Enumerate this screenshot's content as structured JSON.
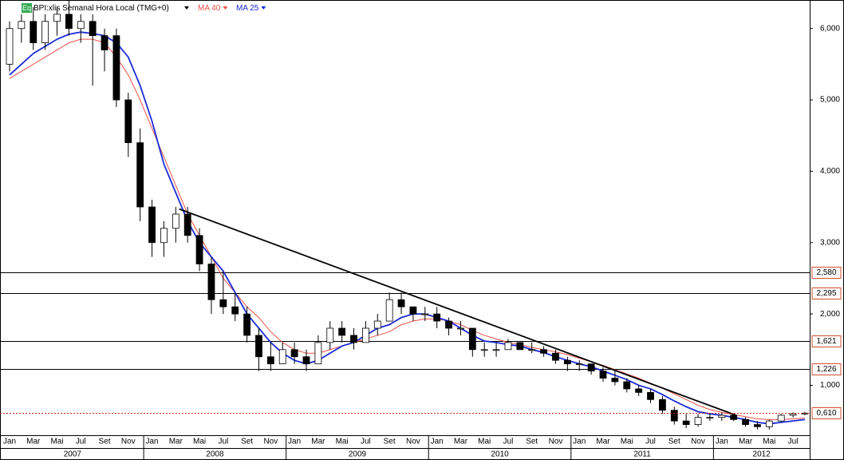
{
  "chart_data": {
    "type": "candlestick",
    "title": "BPI:xlis Semanal Hora Local (TMG+0)",
    "badge": "Eq",
    "categories": [
      "Jan",
      null,
      "Mar",
      null,
      "Mai",
      null,
      "Jul",
      null,
      "Set",
      null,
      "Nov",
      null,
      "Jan",
      null,
      "Mar",
      null,
      "Mai",
      null,
      "Jul",
      null,
      "Set",
      null,
      "Nov",
      null,
      "Jan",
      null,
      "Mar",
      null,
      "Mai",
      null,
      "Jul",
      null,
      "Set",
      null,
      "Nov",
      null,
      "Jan",
      null,
      "Mar",
      null,
      "Mai",
      null,
      "Jul",
      null,
      "Set",
      null,
      "Nov",
      null,
      "Jan",
      null,
      "Mar",
      null,
      "Mai",
      null,
      "Jul",
      null,
      "Set",
      null,
      "Nov",
      null,
      "Jan",
      null,
      "Mar",
      null,
      "Mai",
      null,
      "Jul",
      null
    ],
    "years": [
      "2007",
      "2008",
      "2009",
      "2010",
      "2011",
      "2012"
    ],
    "open": [
      5.5,
      6.0,
      6.1,
      5.8,
      6.1,
      6.2,
      6.0,
      6.1,
      5.9,
      5.9,
      5.0,
      4.4,
      3.5,
      3.0,
      3.2,
      3.4,
      3.1,
      2.7,
      2.2,
      2.1,
      2.0,
      1.7,
      1.4,
      1.3,
      1.5,
      1.4,
      1.3,
      1.6,
      1.8,
      1.7,
      1.6,
      1.8,
      1.9,
      2.2,
      2.1,
      2.0,
      2.0,
      1.9,
      1.8,
      1.8,
      1.5,
      1.5,
      1.5,
      1.6,
      1.5,
      1.5,
      1.45,
      1.35,
      1.3,
      1.3,
      1.2,
      1.1,
      1.05,
      0.95,
      0.9,
      0.8,
      0.65,
      0.5,
      0.45,
      0.55,
      0.55,
      0.58,
      0.52,
      0.45,
      0.42,
      0.5,
      0.58,
      0.6
    ],
    "high": [
      6.1,
      6.2,
      6.3,
      6.2,
      6.3,
      6.4,
      6.2,
      6.2,
      6.0,
      6.0,
      5.1,
      4.6,
      3.6,
      3.3,
      3.5,
      3.5,
      3.2,
      2.8,
      2.6,
      2.3,
      2.1,
      1.8,
      1.6,
      1.6,
      1.6,
      1.5,
      1.7,
      1.9,
      1.9,
      1.8,
      1.9,
      2.0,
      2.3,
      2.3,
      2.1,
      2.1,
      2.1,
      1.95,
      1.9,
      1.8,
      1.6,
      1.6,
      1.65,
      1.6,
      1.6,
      1.55,
      1.5,
      1.4,
      1.35,
      1.3,
      1.25,
      1.2,
      1.1,
      1.0,
      0.95,
      0.85,
      0.7,
      0.6,
      0.6,
      0.6,
      0.62,
      0.6,
      0.55,
      0.5,
      0.52,
      0.6,
      0.62,
      0.63
    ],
    "low": [
      5.4,
      5.8,
      5.7,
      5.7,
      5.9,
      5.9,
      5.8,
      5.2,
      5.4,
      4.9,
      4.2,
      3.3,
      2.8,
      2.8,
      3.0,
      3.0,
      2.6,
      2.0,
      2.0,
      1.9,
      1.6,
      1.2,
      1.2,
      1.3,
      1.3,
      1.2,
      1.3,
      1.5,
      1.6,
      1.5,
      1.6,
      1.7,
      1.9,
      2.0,
      1.9,
      1.9,
      1.8,
      1.7,
      1.7,
      1.4,
      1.4,
      1.4,
      1.5,
      1.5,
      1.45,
      1.4,
      1.3,
      1.2,
      1.2,
      1.15,
      1.05,
      1.0,
      0.9,
      0.85,
      0.75,
      0.6,
      0.45,
      0.4,
      0.42,
      0.5,
      0.5,
      0.5,
      0.42,
      0.38,
      0.38,
      0.48,
      0.55,
      0.58
    ],
    "close": [
      6.0,
      6.1,
      5.8,
      6.1,
      6.2,
      6.0,
      6.1,
      5.9,
      5.7,
      5.0,
      4.4,
      3.5,
      3.0,
      3.2,
      3.4,
      3.1,
      2.7,
      2.2,
      2.1,
      2.0,
      1.7,
      1.4,
      1.3,
      1.5,
      1.4,
      1.3,
      1.6,
      1.8,
      1.7,
      1.6,
      1.8,
      1.9,
      2.2,
      2.1,
      2.0,
      2.0,
      1.9,
      1.8,
      1.8,
      1.5,
      1.5,
      1.5,
      1.6,
      1.5,
      1.5,
      1.45,
      1.35,
      1.3,
      1.3,
      1.2,
      1.1,
      1.05,
      0.95,
      0.9,
      0.8,
      0.65,
      0.5,
      0.45,
      0.55,
      0.55,
      0.58,
      0.52,
      0.45,
      0.42,
      0.5,
      0.58,
      0.6,
      0.61
    ],
    "series": [
      {
        "name": "MA 40",
        "color": "#e8504a",
        "values": [
          5.3,
          5.4,
          5.5,
          5.6,
          5.7,
          5.8,
          5.85,
          5.85,
          5.8,
          5.6,
          5.35,
          5.0,
          4.6,
          4.2,
          3.8,
          3.4,
          3.1,
          2.8,
          2.5,
          2.3,
          2.1,
          1.95,
          1.75,
          1.6,
          1.5,
          1.45,
          1.45,
          1.5,
          1.55,
          1.6,
          1.65,
          1.7,
          1.75,
          1.85,
          1.9,
          1.93,
          1.93,
          1.9,
          1.85,
          1.77,
          1.7,
          1.65,
          1.6,
          1.57,
          1.53,
          1.5,
          1.47,
          1.43,
          1.38,
          1.33,
          1.28,
          1.22,
          1.16,
          1.1,
          1.03,
          0.96,
          0.88,
          0.8,
          0.72,
          0.66,
          0.62,
          0.59,
          0.56,
          0.53,
          0.52,
          0.52,
          0.53,
          0.54
        ]
      },
      {
        "name": "MA 25",
        "color": "#1c2bd6",
        "values": [
          5.35,
          5.5,
          5.65,
          5.75,
          5.85,
          5.92,
          5.95,
          5.93,
          5.9,
          5.8,
          5.6,
          5.2,
          4.7,
          4.1,
          3.7,
          3.3,
          3.0,
          2.8,
          2.6,
          2.3,
          2.0,
          1.8,
          1.6,
          1.45,
          1.35,
          1.3,
          1.35,
          1.45,
          1.55,
          1.6,
          1.7,
          1.8,
          1.85,
          1.95,
          2.0,
          2.0,
          1.95,
          1.9,
          1.8,
          1.7,
          1.62,
          1.6,
          1.57,
          1.55,
          1.5,
          1.46,
          1.4,
          1.35,
          1.3,
          1.26,
          1.2,
          1.14,
          1.08,
          1.0,
          0.95,
          0.87,
          0.78,
          0.7,
          0.63,
          0.6,
          0.58,
          0.55,
          0.52,
          0.48,
          0.46,
          0.48,
          0.5,
          0.52
        ]
      }
    ],
    "trend_line": {
      "x": [
        14.3,
        61.2
      ],
      "y": [
        3.47,
        0.58
      ]
    },
    "levels": [
      {
        "value": 2.58,
        "label": "2,580"
      },
      {
        "value": 2.295,
        "label": "2,295"
      },
      {
        "value": 1.621,
        "label": "1,621"
      },
      {
        "value": 1.226,
        "label": "1,226"
      }
    ],
    "last_price": {
      "value": 0.61,
      "label": "0,610"
    },
    "ylim": [
      0.3,
      6.4
    ],
    "yticks": [
      {
        "value": 1,
        "label": "1,000"
      },
      {
        "value": 2,
        "label": "2,000"
      },
      {
        "value": 3,
        "label": "3,000"
      },
      {
        "value": 4,
        "label": "4,000"
      },
      {
        "value": 5,
        "label": "5,000"
      },
      {
        "value": 6,
        "label": "6,000"
      }
    ],
    "up_color": "#ffffff",
    "down_color": "#000000"
  }
}
